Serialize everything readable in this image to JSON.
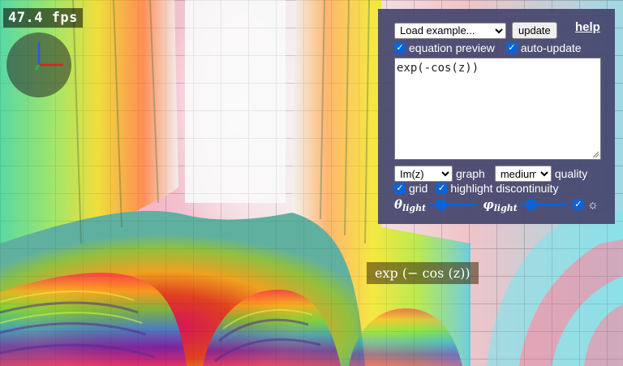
{
  "hud": {
    "fps": "47.4 fps"
  },
  "controls": {
    "example_select": {
      "value": "Load example...",
      "options": [
        "Load example..."
      ]
    },
    "update_label": "update",
    "help_label": "help",
    "equation_preview_label": "equation preview",
    "auto_update_label": "auto-update",
    "equation": "exp(-cos(z))",
    "graph_select": {
      "value": "Im(z)",
      "options": [
        "Im(z)"
      ]
    },
    "graph_label": "graph",
    "quality_select": {
      "value": "medium",
      "options": [
        "medium"
      ]
    },
    "quality_label": "quality",
    "grid_label": "grid",
    "discontinuity_label": "highlight discontinuity",
    "theta_symbol": "θ",
    "phi_symbol": "φ",
    "light_subscript": "light",
    "sun_symbol": "☼",
    "checked_symbol": "✓"
  },
  "preview": {
    "text": "exp (− cos (z))"
  },
  "colors": {
    "panel": "#46466e",
    "checkbox": "#0a64d8",
    "accent_axes_red": "#e02020",
    "accent_axes_blue": "#2060e0"
  }
}
